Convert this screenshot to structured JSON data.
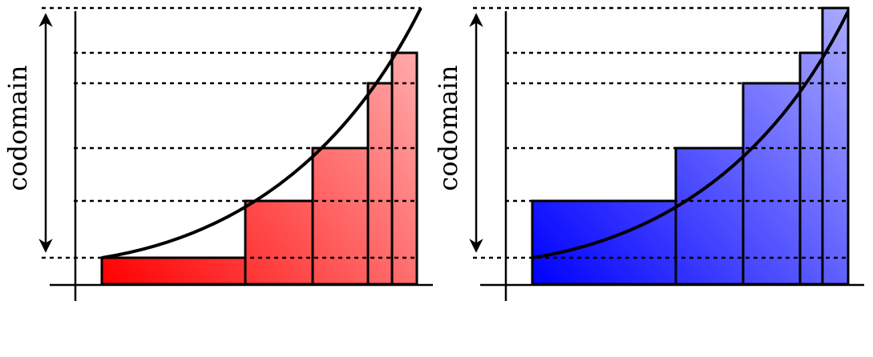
{
  "left_panel": {
    "axis_label": "codomain",
    "bar_color_start": "#ff0000",
    "bar_color_end": "#ffaaaa"
  },
  "right_panel": {
    "axis_label": "codomain",
    "bar_color_start": "#0000ff",
    "bar_color_end": "#aaaaff"
  }
}
